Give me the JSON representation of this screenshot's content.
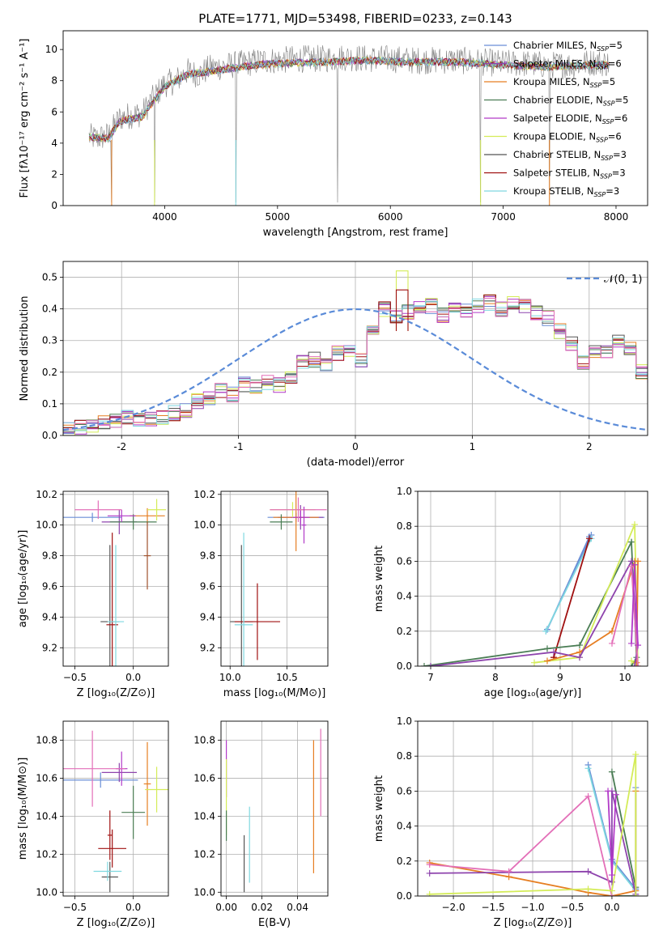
{
  "chart_data": [
    {
      "id": "spectrum",
      "type": "line",
      "title": "PLATE=1771, MJD=53498, FIBERID=0233, z=0.143",
      "xlabel": "wavelength [Angstrom, rest frame]",
      "ylabel": "Flux [fλ10⁻¹⁷ erg cm⁻² s⁻¹ A⁻¹]",
      "xlim": [
        3100,
        8280
      ],
      "ylim": [
        0,
        11.2
      ],
      "xticks": [
        4000,
        5000,
        6000,
        7000,
        8000
      ],
      "yticks": [
        0,
        2,
        4,
        6,
        8,
        10
      ],
      "grid": false,
      "legend_position": "upper-right",
      "data_color": "#808080",
      "data_wavelength": [
        3330,
        3400,
        3500,
        3600,
        3700,
        3800,
        3900,
        4000,
        4100,
        4200,
        4300,
        4400,
        4500,
        4600,
        4700,
        4800,
        4900,
        5000,
        5200,
        5400,
        5600,
        5800,
        6000,
        6200,
        6400,
        6600,
        6800,
        7000,
        7200,
        7400,
        7600,
        7800,
        7940
      ],
      "data_flux": [
        4.4,
        4.3,
        4.5,
        5.6,
        5.8,
        5.9,
        6.9,
        7.8,
        8.0,
        8.6,
        8.4,
        8.8,
        8.9,
        9.0,
        9.1,
        9.2,
        9.3,
        9.3,
        9.4,
        9.4,
        9.5,
        9.4,
        9.4,
        9.3,
        9.3,
        9.3,
        9.2,
        9.1,
        9.1,
        9.0,
        9.0,
        9.2,
        9.1
      ],
      "data_noise": 0.9,
      "absorption_lines": [
        3530,
        3910,
        4630,
        5530,
        6800,
        7410
      ],
      "model_wavelength": [
        3330,
        3500,
        3600,
        3800,
        4000,
        4200,
        4400,
        4600,
        4800,
        5000,
        5400,
        5800,
        6200,
        6600,
        7000,
        7400,
        7800,
        7940
      ],
      "model_flux": [
        4.4,
        4.3,
        5.4,
        5.7,
        7.6,
        8.4,
        8.6,
        8.8,
        9.0,
        9.1,
        9.2,
        9.3,
        9.2,
        9.2,
        9.0,
        8.9,
        9.0,
        9.0
      ],
      "series": [
        {
          "name": "Chabrier MILES, Nₛₛₚ=5",
          "label_main": "Chabrier MILES, N",
          "label_sub": "SSP",
          "label_tail": "=5",
          "color": "#6a8ed6"
        },
        {
          "name": "Salpeter MILES, Nₛₛₚ=6",
          "label_main": "Salpeter MILES, N",
          "label_sub": "SSP",
          "label_tail": "=6",
          "color": "#8e44ad"
        },
        {
          "name": "Kroupa MILES, Nₛₛₚ=5",
          "label_main": "Kroupa MILES, N",
          "label_sub": "SSP",
          "label_tail": "=5",
          "color": "#e67e22"
        },
        {
          "name": "Chabrier ELODIE, Nₛₛₚ=5",
          "label_main": "Chabrier ELODIE, N",
          "label_sub": "SSP",
          "label_tail": "=5",
          "color": "#4a7d54"
        },
        {
          "name": "Salpeter ELODIE, Nₛₛₚ=6",
          "label_main": "Salpeter ELODIE, N",
          "label_sub": "SSP",
          "label_tail": "=6",
          "color": "#b23ac8"
        },
        {
          "name": "Kroupa ELODIE, Nₛₛₚ=6",
          "label_main": "Kroupa ELODIE, N",
          "label_sub": "SSP",
          "label_tail": "=6",
          "color": "#d4ec58"
        },
        {
          "name": "Chabrier STELIB, Nₛₛₚ=3",
          "label_main": "Chabrier STELIB, N",
          "label_sub": "SSP",
          "label_tail": "=3",
          "color": "#555555"
        },
        {
          "name": "Salpeter STELIB, Nₛₛₚ=3",
          "label_main": "Salpeter STELIB, N",
          "label_sub": "SSP",
          "label_tail": "=3",
          "color": "#a01010"
        },
        {
          "name": "Kroupa STELIB, Nₛₛₚ=3",
          "label_main": "Kroupa STELIB, N",
          "label_sub": "SSP",
          "label_tail": "=3",
          "color": "#7fd8e0"
        }
      ]
    },
    {
      "id": "residuals",
      "type": "line",
      "xlabel": "(data-model)/error",
      "ylabel": "Normed distribution",
      "xlim": [
        -2.5,
        2.5
      ],
      "ylim": [
        0,
        0.55
      ],
      "xticks": [
        -2,
        -1,
        0,
        1,
        2
      ],
      "yticks": [
        0.0,
        0.1,
        0.2,
        0.3,
        0.4,
        0.5
      ],
      "grid": true,
      "legend_position": "upper-right",
      "gaussian_label": "𝒩(0, 1)",
      "gaussian_color": "#5a8bd8",
      "bin_width": 0.1,
      "bin_start": -2.5,
      "histogram_base": [
        0.02,
        0.025,
        0.03,
        0.04,
        0.05,
        0.055,
        0.05,
        0.055,
        0.06,
        0.07,
        0.08,
        0.11,
        0.12,
        0.14,
        0.13,
        0.16,
        0.15,
        0.17,
        0.16,
        0.19,
        0.23,
        0.24,
        0.22,
        0.26,
        0.27,
        0.24,
        0.33,
        0.4,
        0.38,
        0.39,
        0.4,
        0.41,
        0.38,
        0.4,
        0.39,
        0.41,
        0.42,
        0.4,
        0.42,
        0.41,
        0.39,
        0.37,
        0.33,
        0.29,
        0.23,
        0.27,
        0.26,
        0.3,
        0.28,
        0.2,
        0.19,
        0.16,
        0.14,
        0.13,
        0.12,
        0.1,
        0.09,
        0.08,
        0.07,
        0.06,
        0.055,
        0.05,
        0.045,
        0.04,
        0.03,
        0.035,
        0.03,
        0.025,
        0.02,
        0.03,
        0.035,
        0.03,
        0.025,
        0.03,
        0.02,
        0.03,
        0.025,
        0.03,
        0.02,
        0.025,
        0.03,
        0.025,
        0.02,
        0.03,
        0.025,
        0.03,
        0.02,
        0.025,
        0.03,
        0.025,
        0.02,
        0.025,
        0.03,
        0.02,
        0.025,
        0.02,
        0.025,
        0.02,
        0.025,
        0.02
      ],
      "highlight_bins": [
        {
          "x": 0.4,
          "value": 0.52,
          "color": "#d4ec58"
        },
        {
          "x": 0.4,
          "value": 0.46,
          "color": "#a01010"
        }
      ]
    },
    {
      "id": "age-vs-Z",
      "type": "scatter",
      "xlabel": "Z [log₁₀(Z/Z⊙)]",
      "ylabel": "age  [log₁₀(age/yr)]",
      "xlim": [
        -0.6,
        0.3
      ],
      "ylim": [
        9.08,
        10.22
      ],
      "xticks": [
        -0.5,
        0.0
      ],
      "yticks": [
        9.2,
        9.4,
        9.6,
        9.8,
        10.0,
        10.2
      ],
      "grid": true,
      "points": [
        {
          "x": -0.35,
          "y": 10.05,
          "dx": 0.25,
          "dy": 0.03,
          "color": "#6a8ed6"
        },
        {
          "x": -0.12,
          "y": 10.02,
          "dx": 0.15,
          "dy": 0.08,
          "color": "#8e44ad"
        },
        {
          "x": 0.12,
          "y": 10.06,
          "dx": 0.15,
          "dy": 0.05,
          "color": "#e67e22"
        },
        {
          "x": 0.0,
          "y": 10.02,
          "dx": 0.2,
          "dy": 0.05,
          "color": "#4a7d54"
        },
        {
          "x": -0.1,
          "y": 10.06,
          "dx": 0.12,
          "dy": 0.04,
          "color": "#b23ac8"
        },
        {
          "x": 0.2,
          "y": 10.1,
          "dx": 0.08,
          "dy": 0.07,
          "color": "#d4ec58"
        },
        {
          "x": -0.2,
          "y": 9.37,
          "dx": 0.08,
          "dy": 0.5,
          "color": "#555555"
        },
        {
          "x": -0.18,
          "y": 9.35,
          "dx": 0.05,
          "dy": 0.6,
          "color": "#a01010"
        },
        {
          "x": -0.15,
          "y": 9.37,
          "dx": 0.07,
          "dy": 0.5,
          "color": "#7fd8e0"
        },
        {
          "x": -0.3,
          "y": 10.1,
          "dx": 0.2,
          "dy": 0.06,
          "color": "#e36fb8"
        },
        {
          "x": 0.12,
          "y": 9.8,
          "dx": 0.03,
          "dy": 0.22,
          "color": "#a0522d"
        }
      ]
    },
    {
      "id": "age-vs-mass",
      "type": "scatter",
      "xlabel": "mass [log₁₀(M/M⊙)]",
      "ylabel": "",
      "xlim": [
        9.92,
        10.86
      ],
      "ylim": [
        9.08,
        10.22
      ],
      "xticks": [
        10.0,
        10.5
      ],
      "yticks": [
        9.2,
        9.4,
        9.6,
        9.8,
        10.0,
        10.2
      ],
      "grid": true,
      "points": [
        {
          "x": 10.58,
          "y": 10.05,
          "dx": 0.25,
          "dy": 0.03,
          "color": "#6a8ed6"
        },
        {
          "x": 10.62,
          "y": 10.05,
          "dx": 0.2,
          "dy": 0.08,
          "color": "#8e44ad"
        },
        {
          "x": 10.58,
          "y": 10.05,
          "dx": 0.2,
          "dy": 0.22,
          "color": "#e67e22"
        },
        {
          "x": 10.45,
          "y": 10.02,
          "dx": 0.1,
          "dy": 0.05,
          "color": "#4a7d54"
        },
        {
          "x": 10.62,
          "y": 10.05,
          "dx": 0.08,
          "dy": 0.05,
          "color": "#b23ac8"
        },
        {
          "x": 10.55,
          "y": 10.1,
          "dx": 0.2,
          "dy": 0.05,
          "color": "#d4ec58"
        },
        {
          "x": 10.1,
          "y": 9.37,
          "dx": 0.1,
          "dy": 0.5,
          "color": "#555555"
        },
        {
          "x": 10.24,
          "y": 9.37,
          "dx": 0.2,
          "dy": 0.25,
          "color": "#a01010"
        },
        {
          "x": 10.12,
          "y": 9.35,
          "dx": 0.08,
          "dy": 0.6,
          "color": "#7fd8e0"
        },
        {
          "x": 10.6,
          "y": 10.1,
          "dx": 0.25,
          "dy": 0.08,
          "color": "#e36fb8"
        },
        {
          "x": 10.65,
          "y": 10.0,
          "dx": 0.02,
          "dy": 0.12,
          "color": "#b23ac8"
        }
      ]
    },
    {
      "id": "mass-weight-vs-age",
      "type": "line",
      "xlabel": "age  [log₁₀(age/yr)]",
      "ylabel": "mass weight",
      "xlim": [
        6.8,
        10.35
      ],
      "ylim": [
        0,
        1.0
      ],
      "xticks": [
        7,
        8,
        9,
        10
      ],
      "yticks": [
        0.0,
        0.2,
        0.4,
        0.6,
        0.8,
        1.0
      ],
      "grid": true,
      "series": [
        {
          "color": "#6a8ed6",
          "x": [
            8.8,
            9.48,
            9.45,
            8.8
          ],
          "y": [
            0.21,
            0.75,
            0.74,
            0.21
          ]
        },
        {
          "color": "#7fd8e0",
          "x": [
            8.78,
            9.48,
            8.78
          ],
          "y": [
            0.2,
            0.73,
            0.2
          ]
        },
        {
          "color": "#a01010",
          "x": [
            8.9,
            9.45,
            8.9
          ],
          "y": [
            0.05,
            0.73,
            0.05
          ]
        },
        {
          "color": "#4a7d54",
          "x": [
            6.9,
            8.8,
            9.3,
            10.1,
            10.18,
            10.1
          ],
          "y": [
            0.0,
            0.1,
            0.12,
            0.71,
            0.05,
            0.0
          ]
        },
        {
          "color": "#d4ec58",
          "x": [
            8.6,
            9.3,
            10.15,
            10.2,
            10.1
          ],
          "y": [
            0.02,
            0.05,
            0.81,
            0.0,
            0.03
          ]
        },
        {
          "color": "#e67e22",
          "x": [
            8.8,
            9.3,
            9.8,
            10.15,
            10.2,
            10.18
          ],
          "y": [
            0.03,
            0.08,
            0.2,
            0.6,
            0.6,
            0.02
          ]
        },
        {
          "color": "#8e44ad",
          "x": [
            7.0,
            8.9,
            9.3,
            10.1,
            10.2,
            10.15
          ],
          "y": [
            0.0,
            0.08,
            0.05,
            0.6,
            0.12,
            0.0
          ]
        },
        {
          "color": "#e36fb8",
          "x": [
            9.8,
            10.1,
            10.2
          ],
          "y": [
            0.13,
            0.57,
            0.0
          ]
        },
        {
          "color": "#b23ac8",
          "x": [
            10.1,
            10.15,
            10.2
          ],
          "y": [
            0.13,
            0.58,
            0.12
          ]
        }
      ]
    },
    {
      "id": "mass-vs-Z",
      "type": "scatter",
      "xlabel": "Z [log₁₀(Z/Z⊙)]",
      "ylabel": "mass [log₁₀(M/M⊙)]",
      "xlim": [
        -0.6,
        0.3
      ],
      "ylim": [
        9.98,
        10.9
      ],
      "xticks": [
        -0.5,
        0.0
      ],
      "yticks": [
        10.0,
        10.2,
        10.4,
        10.6,
        10.8
      ],
      "grid": true,
      "points": [
        {
          "x": -0.28,
          "y": 10.59,
          "dx": 0.32,
          "dy": 0.04,
          "color": "#6a8ed6"
        },
        {
          "x": -0.12,
          "y": 10.63,
          "dx": 0.15,
          "dy": 0.05,
          "color": "#8e44ad"
        },
        {
          "x": 0.12,
          "y": 10.57,
          "dx": 0.03,
          "dy": 0.22,
          "color": "#e67e22"
        },
        {
          "x": 0.0,
          "y": 10.42,
          "dx": 0.1,
          "dy": 0.14,
          "color": "#4a7d54"
        },
        {
          "x": -0.1,
          "y": 10.65,
          "dx": 0.05,
          "dy": 0.09,
          "color": "#b23ac8"
        },
        {
          "x": 0.2,
          "y": 10.54,
          "dx": 0.1,
          "dy": 0.12,
          "color": "#d4ec58"
        },
        {
          "x": -0.2,
          "y": 10.08,
          "dx": 0.07,
          "dy": 0.08,
          "color": "#555555"
        },
        {
          "x": -0.18,
          "y": 10.23,
          "dx": 0.12,
          "dy": 0.1,
          "color": "#a01010"
        },
        {
          "x": -0.22,
          "y": 10.11,
          "dx": 0.12,
          "dy": 0.05,
          "color": "#7fd8e0"
        },
        {
          "x": -0.35,
          "y": 10.65,
          "dx": 0.28,
          "dy": 0.2,
          "color": "#e36fb8"
        },
        {
          "x": -0.2,
          "y": 10.3,
          "dx": 0.02,
          "dy": 0.13,
          "color": "#a01010"
        }
      ]
    },
    {
      "id": "mass-vs-EBV",
      "type": "scatter",
      "xlabel": "E(B-V)",
      "ylabel": "",
      "xlim": [
        -0.003,
        0.057
      ],
      "ylim": [
        9.98,
        10.9
      ],
      "xticks": [
        0.0,
        0.02,
        0.04
      ],
      "yticks": [
        10.0,
        10.2,
        10.4,
        10.6,
        10.8
      ],
      "grid": true,
      "points": [
        {
          "x": 0.0,
          "y": 10.65,
          "dx": 0.0,
          "dy": 0.15,
          "color": "#b23ac8"
        },
        {
          "x": 0.0,
          "y": 10.5,
          "dx": 0.0,
          "dy": 0.2,
          "color": "#d4ec58"
        },
        {
          "x": 0.0,
          "y": 10.35,
          "dx": 0.0,
          "dy": 0.08,
          "color": "#4a7d54"
        },
        {
          "x": 0.01,
          "y": 10.15,
          "dx": 0.0,
          "dy": 0.15,
          "color": "#555555"
        },
        {
          "x": 0.013,
          "y": 10.25,
          "dx": 0.0,
          "dy": 0.2,
          "color": "#7fd8e0"
        },
        {
          "x": 0.049,
          "y": 10.45,
          "dx": 0.0,
          "dy": 0.35,
          "color": "#e67e22"
        },
        {
          "x": 0.053,
          "y": 10.63,
          "dx": 0.0,
          "dy": 0.23,
          "color": "#e36fb8"
        }
      ]
    },
    {
      "id": "mass-weight-vs-Z",
      "type": "line",
      "xlabel": "Z [log₁₀(Z/Z⊙)]",
      "ylabel": "mass weight",
      "xlim": [
        -2.45,
        0.45
      ],
      "ylim": [
        0,
        1.0
      ],
      "xticks": [
        -2.0,
        -1.5,
        -1.0,
        -0.5,
        0.0
      ],
      "yticks": [
        0.0,
        0.2,
        0.4,
        0.6,
        0.8,
        1.0
      ],
      "grid": true,
      "series": [
        {
          "color": "#6a8ed6",
          "x": [
            -0.3,
            0.0,
            0.3,
            0.3
          ],
          "y": [
            0.75,
            0.21,
            0.04,
            0.62
          ]
        },
        {
          "color": "#7fd8e0",
          "x": [
            -0.3,
            0.0,
            0.3
          ],
          "y": [
            0.73,
            0.2,
            0.03
          ]
        },
        {
          "color": "#4a7d54",
          "x": [
            0.0,
            0.3,
            0.3,
            0.0
          ],
          "y": [
            0.71,
            0.05,
            0.0,
            0.0
          ]
        },
        {
          "color": "#e67e22",
          "x": [
            -2.3,
            -1.3,
            -0.3,
            0.0,
            0.3,
            0.3
          ],
          "y": [
            0.19,
            0.11,
            0.02,
            0.0,
            0.03,
            0.6
          ]
        },
        {
          "color": "#8e44ad",
          "x": [
            -2.3,
            -0.3,
            0.0,
            0.0,
            0.3
          ],
          "y": [
            0.13,
            0.14,
            0.08,
            0.6,
            0.01
          ]
        },
        {
          "color": "#e36fb8",
          "x": [
            -2.3,
            -1.3,
            -0.3,
            0.0
          ],
          "y": [
            0.18,
            0.14,
            0.57,
            0.0
          ]
        },
        {
          "color": "#d4ec58",
          "x": [
            -2.3,
            -0.3,
            0.0,
            0.3,
            0.3
          ],
          "y": [
            0.01,
            0.04,
            0.03,
            0.81,
            0.0
          ]
        },
        {
          "color": "#b23ac8",
          "x": [
            -0.05,
            0.0,
            0.05
          ],
          "y": [
            0.6,
            0.12,
            0.58
          ]
        }
      ]
    }
  ]
}
